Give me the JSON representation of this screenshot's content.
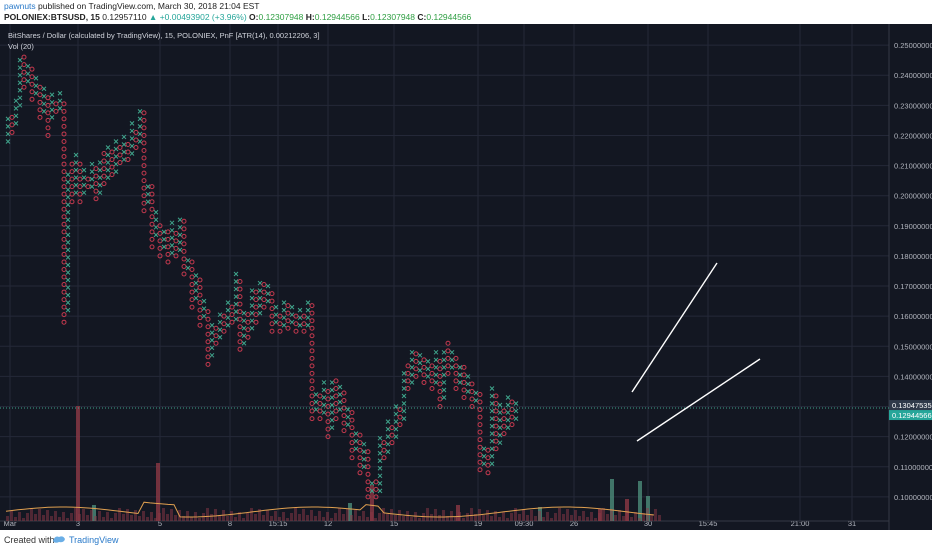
{
  "header": {
    "username": "pawnuts",
    "published_text": "published on TradingView.com, March 30, 2018 21:04 EST",
    "symbol": "POLONIEX:BTSUSD, 15",
    "last": "0.12957110",
    "change": "▲ +0.00493902 (+3.96%)",
    "o_label": "O:",
    "o_value": "0.12307948",
    "h_label": "H:",
    "h_value": "0.12944566",
    "l_label": "L:",
    "l_value": "0.12307948",
    "c_label": "C:",
    "c_value": "0.12944566"
  },
  "chart_legend": {
    "title": "BitShares / Dollar (calculated by TradingView), 15, POLONIEX, PnF [ATR(14), 0.00212206, 3]",
    "volume_label": "Vol (20)"
  },
  "footer": {
    "created_with": "Created with",
    "brand": "TradingView"
  },
  "colors": {
    "background": "#131722",
    "grid": "#242838",
    "x_color": "#3fa58c",
    "o_color": "#c4394e",
    "vol_up": "#4c8c7b",
    "vol_down": "#8c3845",
    "trendline": "#ffffff",
    "label_last": "#2f3a4a",
    "label_price": "#26a69a",
    "price_line": "#3fa58c"
  },
  "chart_data": {
    "type": "point-and-figure",
    "ylim": [
      0.092,
      0.257
    ],
    "y_ticks": [
      "0.25000000",
      "0.24000000",
      "0.23000000",
      "0.22000000",
      "0.21000000",
      "0.20000000",
      "0.19000000",
      "0.18000000",
      "0.17000000",
      "0.16000000",
      "0.15000000",
      "0.14000000",
      "0.13000000",
      "0.12000000",
      "0.11000000",
      "0.10000000"
    ],
    "x_ticks": [
      "Mar",
      "3",
      "5",
      "8",
      "15:15",
      "12",
      "15",
      "19",
      "09:30",
      "26",
      "30",
      "15:45",
      "21:00",
      "31"
    ],
    "last_price_label": "0.13047535",
    "current_price_label": "0.12944566",
    "box_size": 0.00212206,
    "columns": [
      {
        "dir": "X",
        "lo": 0.218,
        "hi": 0.226
      },
      {
        "dir": "O",
        "lo": 0.221,
        "hi": 0.228
      },
      {
        "dir": "X",
        "lo": 0.224,
        "hi": 0.232
      },
      {
        "dir": "X",
        "lo": 0.23,
        "hi": 0.245
      },
      {
        "dir": "O",
        "lo": 0.236,
        "hi": 0.247
      },
      {
        "dir": "X",
        "lo": 0.238,
        "hi": 0.245
      },
      {
        "dir": "O",
        "lo": 0.232,
        "hi": 0.243
      },
      {
        "dir": "X",
        "lo": 0.234,
        "hi": 0.24
      },
      {
        "dir": "O",
        "lo": 0.226,
        "hi": 0.238
      },
      {
        "dir": "X",
        "lo": 0.228,
        "hi": 0.236
      },
      {
        "dir": "O",
        "lo": 0.22,
        "hi": 0.234
      },
      {
        "dir": "X",
        "lo": 0.226,
        "hi": 0.234
      },
      {
        "dir": "O",
        "lo": 0.228,
        "hi": 0.232
      },
      {
        "dir": "X",
        "lo": 0.229,
        "hi": 0.235
      },
      {
        "dir": "O",
        "lo": 0.158,
        "hi": 0.232
      },
      {
        "dir": "X",
        "lo": 0.162,
        "hi": 0.209
      },
      {
        "dir": "O",
        "lo": 0.198,
        "hi": 0.212
      },
      {
        "dir": "X",
        "lo": 0.201,
        "hi": 0.214
      },
      {
        "dir": "O",
        "lo": 0.198,
        "hi": 0.211
      },
      {
        "dir": "X",
        "lo": 0.201,
        "hi": 0.209
      },
      {
        "dir": "O",
        "lo": 0.203,
        "hi": 0.207
      },
      {
        "dir": "X",
        "lo": 0.203,
        "hi": 0.211
      },
      {
        "dir": "O",
        "lo": 0.199,
        "hi": 0.21
      },
      {
        "dir": "X",
        "lo": 0.201,
        "hi": 0.213
      },
      {
        "dir": "O",
        "lo": 0.204,
        "hi": 0.214
      },
      {
        "dir": "X",
        "lo": 0.206,
        "hi": 0.216
      },
      {
        "dir": "O",
        "lo": 0.207,
        "hi": 0.215
      },
      {
        "dir": "X",
        "lo": 0.208,
        "hi": 0.219
      },
      {
        "dir": "O",
        "lo": 0.211,
        "hi": 0.218
      },
      {
        "dir": "X",
        "lo": 0.212,
        "hi": 0.221
      },
      {
        "dir": "O",
        "lo": 0.212,
        "hi": 0.219
      },
      {
        "dir": "X",
        "lo": 0.214,
        "hi": 0.224
      },
      {
        "dir": "O",
        "lo": 0.216,
        "hi": 0.222
      },
      {
        "dir": "X",
        "lo": 0.218,
        "hi": 0.229
      },
      {
        "dir": "O",
        "lo": 0.195,
        "hi": 0.228
      },
      {
        "dir": "X",
        "lo": 0.198,
        "hi": 0.205
      },
      {
        "dir": "O",
        "lo": 0.183,
        "hi": 0.204
      },
      {
        "dir": "X",
        "lo": 0.187,
        "hi": 0.195
      },
      {
        "dir": "O",
        "lo": 0.18,
        "hi": 0.192
      },
      {
        "dir": "X",
        "lo": 0.183,
        "hi": 0.19
      },
      {
        "dir": "O",
        "lo": 0.178,
        "hi": 0.188
      },
      {
        "dir": "X",
        "lo": 0.181,
        "hi": 0.191
      },
      {
        "dir": "O",
        "lo": 0.18,
        "hi": 0.189
      },
      {
        "dir": "X",
        "lo": 0.182,
        "hi": 0.194
      },
      {
        "dir": "O",
        "lo": 0.174,
        "hi": 0.192
      },
      {
        "dir": "X",
        "lo": 0.176,
        "hi": 0.18
      },
      {
        "dir": "O",
        "lo": 0.163,
        "hi": 0.179
      },
      {
        "dir": "X",
        "lo": 0.166,
        "hi": 0.174
      },
      {
        "dir": "O",
        "lo": 0.157,
        "hi": 0.173
      },
      {
        "dir": "X",
        "lo": 0.16,
        "hi": 0.165
      },
      {
        "dir": "O",
        "lo": 0.144,
        "hi": 0.163
      },
      {
        "dir": "X",
        "lo": 0.147,
        "hi": 0.158
      },
      {
        "dir": "O",
        "lo": 0.151,
        "hi": 0.157
      },
      {
        "dir": "X",
        "lo": 0.153,
        "hi": 0.162
      },
      {
        "dir": "O",
        "lo": 0.155,
        "hi": 0.16
      },
      {
        "dir": "X",
        "lo": 0.157,
        "hi": 0.165
      },
      {
        "dir": "O",
        "lo": 0.158,
        "hi": 0.164
      },
      {
        "dir": "X",
        "lo": 0.159,
        "hi": 0.175
      },
      {
        "dir": "O",
        "lo": 0.149,
        "hi": 0.173
      },
      {
        "dir": "X",
        "lo": 0.151,
        "hi": 0.163
      },
      {
        "dir": "O",
        "lo": 0.153,
        "hi": 0.161
      },
      {
        "dir": "X",
        "lo": 0.156,
        "hi": 0.169
      },
      {
        "dir": "O",
        "lo": 0.158,
        "hi": 0.168
      },
      {
        "dir": "X",
        "lo": 0.161,
        "hi": 0.173
      },
      {
        "dir": "O",
        "lo": 0.163,
        "hi": 0.171
      },
      {
        "dir": "X",
        "lo": 0.165,
        "hi": 0.17
      },
      {
        "dir": "O",
        "lo": 0.155,
        "hi": 0.169
      },
      {
        "dir": "X",
        "lo": 0.158,
        "hi": 0.163
      },
      {
        "dir": "O",
        "lo": 0.155,
        "hi": 0.162
      },
      {
        "dir": "X",
        "lo": 0.157,
        "hi": 0.166
      },
      {
        "dir": "O",
        "lo": 0.156,
        "hi": 0.164
      },
      {
        "dir": "X",
        "lo": 0.158,
        "hi": 0.163
      },
      {
        "dir": "O",
        "lo": 0.155,
        "hi": 0.161
      },
      {
        "dir": "X",
        "lo": 0.157,
        "hi": 0.163
      },
      {
        "dir": "O",
        "lo": 0.155,
        "hi": 0.161
      },
      {
        "dir": "X",
        "lo": 0.157,
        "hi": 0.165
      },
      {
        "dir": "O",
        "lo": 0.126,
        "hi": 0.164
      },
      {
        "dir": "X",
        "lo": 0.129,
        "hi": 0.136
      },
      {
        "dir": "O",
        "lo": 0.126,
        "hi": 0.134
      },
      {
        "dir": "X",
        "lo": 0.128,
        "hi": 0.138
      },
      {
        "dir": "O",
        "lo": 0.12,
        "hi": 0.137
      },
      {
        "dir": "X",
        "lo": 0.123,
        "hi": 0.14
      },
      {
        "dir": "O",
        "lo": 0.126,
        "hi": 0.139
      },
      {
        "dir": "X",
        "lo": 0.129,
        "hi": 0.137
      },
      {
        "dir": "O",
        "lo": 0.122,
        "hi": 0.135
      },
      {
        "dir": "X",
        "lo": 0.124,
        "hi": 0.13
      },
      {
        "dir": "O",
        "lo": 0.113,
        "hi": 0.128
      },
      {
        "dir": "X",
        "lo": 0.116,
        "hi": 0.123
      },
      {
        "dir": "O",
        "lo": 0.108,
        "hi": 0.122
      },
      {
        "dir": "X",
        "lo": 0.11,
        "hi": 0.118
      },
      {
        "dir": "O",
        "lo": 0.1,
        "hi": 0.116
      },
      {
        "dir": "X",
        "lo": 0.102,
        "hi": 0.106
      },
      {
        "dir": "O",
        "lo": 0.1,
        "hi": 0.105
      },
      {
        "dir": "X",
        "lo": 0.102,
        "hi": 0.121
      },
      {
        "dir": "O",
        "lo": 0.113,
        "hi": 0.119
      },
      {
        "dir": "X",
        "lo": 0.115,
        "hi": 0.125
      },
      {
        "dir": "O",
        "lo": 0.118,
        "hi": 0.123
      },
      {
        "dir": "X",
        "lo": 0.12,
        "hi": 0.132
      },
      {
        "dir": "O",
        "lo": 0.124,
        "hi": 0.13
      },
      {
        "dir": "X",
        "lo": 0.126,
        "hi": 0.141
      },
      {
        "dir": "O",
        "lo": 0.136,
        "hi": 0.145
      },
      {
        "dir": "X",
        "lo": 0.138,
        "hi": 0.15
      },
      {
        "dir": "O",
        "lo": 0.14,
        "hi": 0.148
      },
      {
        "dir": "X",
        "lo": 0.142,
        "hi": 0.147
      },
      {
        "dir": "O",
        "lo": 0.138,
        "hi": 0.146
      },
      {
        "dir": "X",
        "lo": 0.14,
        "hi": 0.146
      },
      {
        "dir": "O",
        "lo": 0.136,
        "hi": 0.144
      },
      {
        "dir": "X",
        "lo": 0.138,
        "hi": 0.148
      },
      {
        "dir": "O",
        "lo": 0.13,
        "hi": 0.146
      },
      {
        "dir": "X",
        "lo": 0.133,
        "hi": 0.15
      },
      {
        "dir": "O",
        "lo": 0.141,
        "hi": 0.151
      },
      {
        "dir": "X",
        "lo": 0.143,
        "hi": 0.15
      },
      {
        "dir": "O",
        "lo": 0.136,
        "hi": 0.148
      },
      {
        "dir": "X",
        "lo": 0.138,
        "hi": 0.145
      },
      {
        "dir": "O",
        "lo": 0.133,
        "hi": 0.143
      },
      {
        "dir": "X",
        "lo": 0.135,
        "hi": 0.141
      },
      {
        "dir": "O",
        "lo": 0.13,
        "hi": 0.139
      },
      {
        "dir": "X",
        "lo": 0.132,
        "hi": 0.136
      },
      {
        "dir": "O",
        "lo": 0.109,
        "hi": 0.134
      },
      {
        "dir": "X",
        "lo": 0.111,
        "hi": 0.118
      },
      {
        "dir": "O",
        "lo": 0.108,
        "hi": 0.116
      },
      {
        "dir": "X",
        "lo": 0.111,
        "hi": 0.136
      },
      {
        "dir": "O",
        "lo": 0.116,
        "hi": 0.134
      },
      {
        "dir": "X",
        "lo": 0.118,
        "hi": 0.131
      },
      {
        "dir": "O",
        "lo": 0.121,
        "hi": 0.129
      },
      {
        "dir": "X",
        "lo": 0.123,
        "hi": 0.134
      },
      {
        "dir": "O",
        "lo": 0.124,
        "hi": 0.133
      },
      {
        "dir": "X",
        "lo": 0.126,
        "hi": 0.131
      }
    ],
    "volume_bars": [
      {
        "x": 78,
        "h": 115,
        "dir": "down"
      },
      {
        "x": 158,
        "h": 58,
        "dir": "down"
      },
      {
        "x": 372,
        "h": 36,
        "dir": "down"
      },
      {
        "x": 612,
        "h": 42,
        "dir": "up"
      },
      {
        "x": 640,
        "h": 40,
        "dir": "up"
      },
      {
        "x": 94,
        "h": 16,
        "dir": "up"
      },
      {
        "x": 350,
        "h": 18,
        "dir": "up"
      },
      {
        "x": 458,
        "h": 16,
        "dir": "down"
      },
      {
        "x": 540,
        "h": 14,
        "dir": "up"
      },
      {
        "x": 627,
        "h": 22,
        "dir": "down"
      },
      {
        "x": 648,
        "h": 25,
        "dir": "up"
      },
      {
        "x": 600,
        "h": 12,
        "dir": "down"
      }
    ]
  }
}
